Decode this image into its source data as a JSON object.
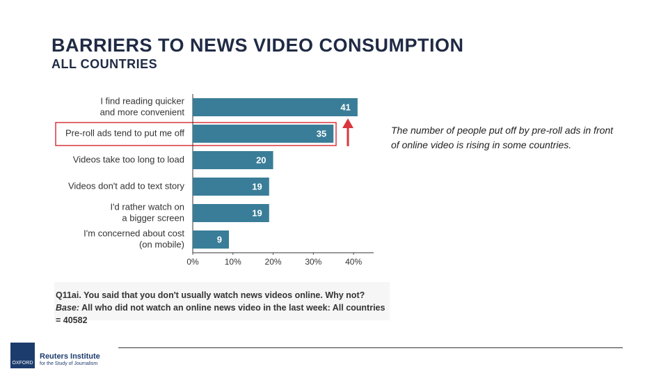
{
  "header": {
    "title": "BARRIERS TO NEWS VIDEO CONSUMPTION",
    "subtitle": "ALL COUNTRIES"
  },
  "chart_data": {
    "type": "bar",
    "orientation": "horizontal",
    "categories": [
      [
        "I find reading quicker",
        "and more convenient"
      ],
      [
        "Pre-roll ads tend to put me off"
      ],
      [
        "Videos take too long to load"
      ],
      [
        "Videos don't add to text story"
      ],
      [
        "I'd rather watch on",
        "a bigger screen"
      ],
      [
        "I'm concerned about cost",
        "(on mobile)"
      ]
    ],
    "values": [
      41,
      35,
      20,
      19,
      19,
      9
    ],
    "color": "#3a7d98",
    "xlim": [
      0,
      45
    ],
    "xticks": [
      {
        "value": 0,
        "label": "0%"
      },
      {
        "value": 10,
        "label": "10%"
      },
      {
        "value": 20,
        "label": "20%"
      },
      {
        "value": 30,
        "label": "30%"
      },
      {
        "value": 40,
        "label": "40%"
      }
    ]
  },
  "annotation": "The number of people put off by pre-roll ads in front of online video is rising in some countries.",
  "note": {
    "question": "Q11ai. You said that you don't usually watch news videos online. Why not?",
    "base_label": "Base:",
    "base": "All who did not watch an online news video in the last week: All countries = 40582"
  },
  "logo": {
    "crest": "OXFORD",
    "name": "Reuters Institute",
    "tagline": "for the Study of Journalism"
  }
}
